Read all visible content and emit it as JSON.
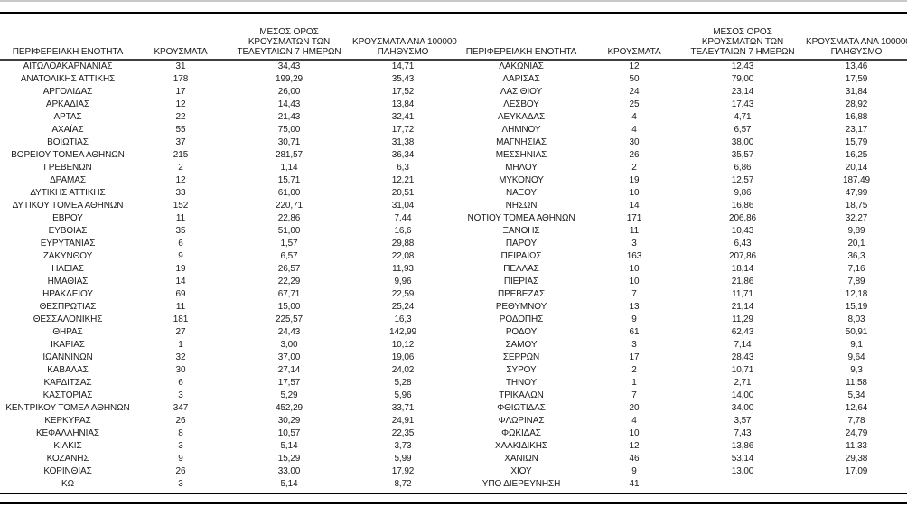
{
  "colors": {
    "top_divider": "#c9c9c9",
    "top_rule": "#000000",
    "header_rule": "#3f3f3f",
    "bottom_rules": "#000000",
    "text": "#1a1a1a"
  },
  "columns": [
    {
      "id": "region",
      "label": "ΠΕΡΙΦΕΡΕΙΑΚΗ ΕΝΟΤΗΤΑ",
      "lines": [
        "ΠΕΡΙΦΕΡΕΙΑΚΗ ΕΝΟΤΗΤΑ"
      ]
    },
    {
      "id": "cases",
      "label": "ΚΡΟΥΣΜΑΤΑ",
      "lines": [
        "ΚΡΟΥΣΜΑΤΑ"
      ]
    },
    {
      "id": "avg7",
      "label": "ΜΕΣΟΣ ΟΡΟΣ ΚΡΟΥΣΜΑΤΩΝ ΤΩΝ ΤΕΛΕΥΤΑΙΩΝ 7 ΗΜΕΡΩΝ",
      "lines": [
        "ΜΕΣΟΣ ΟΡΟΣ",
        "ΚΡΟΥΣΜΑΤΩΝ ΤΩΝ",
        "ΤΕΛΕΥΤΑΙΩΝ 7 ΗΜΕΡΩΝ"
      ]
    },
    {
      "id": "per100k",
      "label": "ΚΡΟΥΣΜΑΤΑ ΑΝΑ 100000 ΠΛΗΘΥΣΜΟ",
      "lines": [
        "ΚΡΟΥΣΜΑΤΑ ΑΝΑ 100000",
        "ΠΛΗΘΥΣΜΟ"
      ]
    }
  ],
  "tables": [
    {
      "id": "left",
      "rows": [
        [
          "ΑΙΤΩΛΟΑΚΑΡΝΑΝΙΑΣ",
          "31",
          "34,43",
          "14,71"
        ],
        [
          "ΑΝΑΤΟΛΙΚΗΣ ΑΤΤΙΚΗΣ",
          "178",
          "199,29",
          "35,43"
        ],
        [
          "ΑΡΓΟΛΙΔΑΣ",
          "17",
          "26,00",
          "17,52"
        ],
        [
          "ΑΡΚΑΔΙΑΣ",
          "12",
          "14,43",
          "13,84"
        ],
        [
          "ΑΡΤΑΣ",
          "22",
          "21,43",
          "32,41"
        ],
        [
          "ΑΧΑΪΑΣ",
          "55",
          "75,00",
          "17,72"
        ],
        [
          "ΒΟΙΩΤΙΑΣ",
          "37",
          "30,71",
          "31,38"
        ],
        [
          "ΒΟΡΕΙΟΥ ΤΟΜΕΑ ΑΘΗΝΩΝ",
          "215",
          "281,57",
          "36,34"
        ],
        [
          "ΓΡΕΒΕΝΩΝ",
          "2",
          "1,14",
          "6,3"
        ],
        [
          "ΔΡΑΜΑΣ",
          "12",
          "15,71",
          "12,21"
        ],
        [
          "ΔΥΤΙΚΗΣ ΑΤΤΙΚΗΣ",
          "33",
          "61,00",
          "20,51"
        ],
        [
          "ΔΥΤΙΚΟΥ ΤΟΜΕΑ ΑΘΗΝΩΝ",
          "152",
          "220,71",
          "31,04"
        ],
        [
          "ΕΒΡΟΥ",
          "11",
          "22,86",
          "7,44"
        ],
        [
          "ΕΥΒΟΙΑΣ",
          "35",
          "51,00",
          "16,6"
        ],
        [
          "ΕΥΡΥΤΑΝΙΑΣ",
          "6",
          "1,57",
          "29,88"
        ],
        [
          "ΖΑΚΥΝΘΟΥ",
          "9",
          "6,57",
          "22,08"
        ],
        [
          "ΗΛΕΙΑΣ",
          "19",
          "26,57",
          "11,93"
        ],
        [
          "ΗΜΑΘΙΑΣ",
          "14",
          "22,29",
          "9,96"
        ],
        [
          "ΗΡΑΚΛΕΙΟΥ",
          "69",
          "67,71",
          "22,59"
        ],
        [
          "ΘΕΣΠΡΩΤΙΑΣ",
          "11",
          "15,00",
          "25,24"
        ],
        [
          "ΘΕΣΣΑΛΟΝΙΚΗΣ",
          "181",
          "225,57",
          "16,3"
        ],
        [
          "ΘΗΡΑΣ",
          "27",
          "24,43",
          "142,99"
        ],
        [
          "ΙΚΑΡΙΑΣ",
          "1",
          "3,00",
          "10,12"
        ],
        [
          "ΙΩΑΝΝΙΝΩΝ",
          "32",
          "37,00",
          "19,06"
        ],
        [
          "ΚΑΒΑΛΑΣ",
          "30",
          "27,14",
          "24,02"
        ],
        [
          "ΚΑΡΔΙΤΣΑΣ",
          "6",
          "17,57",
          "5,28"
        ],
        [
          "ΚΑΣΤΟΡΙΑΣ",
          "3",
          "5,29",
          "5,96"
        ],
        [
          "ΚΕΝΤΡΙΚΟΥ ΤΟΜΕΑ ΑΘΗΝΩΝ",
          "347",
          "452,29",
          "33,71"
        ],
        [
          "ΚΕΡΚΥΡΑΣ",
          "26",
          "30,29",
          "24,91"
        ],
        [
          "ΚΕΦΑΛΛΗΝΙΑΣ",
          "8",
          "10,57",
          "22,35"
        ],
        [
          "ΚΙΛΚΙΣ",
          "3",
          "5,14",
          "3,73"
        ],
        [
          "ΚΟΖΑΝΗΣ",
          "9",
          "15,29",
          "5,99"
        ],
        [
          "ΚΟΡΙΝΘΙΑΣ",
          "26",
          "33,00",
          "17,92"
        ],
        [
          "ΚΩ",
          "3",
          "5,14",
          "8,72"
        ]
      ]
    },
    {
      "id": "right",
      "rows": [
        [
          "ΛΑΚΩΝΙΑΣ",
          "12",
          "12,43",
          "13,46"
        ],
        [
          "ΛΑΡΙΣΑΣ",
          "50",
          "79,00",
          "17,59"
        ],
        [
          "ΛΑΣΙΘΙΟΥ",
          "24",
          "23,14",
          "31,84"
        ],
        [
          "ΛΕΣΒΟΥ",
          "25",
          "17,43",
          "28,92"
        ],
        [
          "ΛΕΥΚΑΔΑΣ",
          "4",
          "4,71",
          "16,88"
        ],
        [
          "ΛΗΜΝΟΥ",
          "4",
          "6,57",
          "23,17"
        ],
        [
          "ΜΑΓΝΗΣΙΑΣ",
          "30",
          "38,00",
          "15,79"
        ],
        [
          "ΜΕΣΣΗΝΙΑΣ",
          "26",
          "35,57",
          "16,25"
        ],
        [
          "ΜΗΛΟΥ",
          "2",
          "6,86",
          "20,14"
        ],
        [
          "ΜΥΚΟΝΟΥ",
          "19",
          "12,57",
          "187,49"
        ],
        [
          "ΝΑΞΟΥ",
          "10",
          "9,86",
          "47,99"
        ],
        [
          "ΝΗΣΩΝ",
          "14",
          "16,86",
          "18,75"
        ],
        [
          "ΝΟΤΙΟΥ ΤΟΜΕΑ ΑΘΗΝΩΝ",
          "171",
          "206,86",
          "32,27"
        ],
        [
          "ΞΑΝΘΗΣ",
          "11",
          "10,43",
          "9,89"
        ],
        [
          "ΠΑΡΟΥ",
          "3",
          "6,43",
          "20,1"
        ],
        [
          "ΠΕΙΡΑΙΩΣ",
          "163",
          "207,86",
          "36,3"
        ],
        [
          "ΠΕΛΛΑΣ",
          "10",
          "18,14",
          "7,16"
        ],
        [
          "ΠΙΕΡΙΑΣ",
          "10",
          "21,86",
          "7,89"
        ],
        [
          "ΠΡΕΒΕΖΑΣ",
          "7",
          "11,71",
          "12,18"
        ],
        [
          "ΡΕΘΥΜΝΟΥ",
          "13",
          "21,14",
          "15,19"
        ],
        [
          "ΡΟΔΟΠΗΣ",
          "9",
          "11,29",
          "8,03"
        ],
        [
          "ΡΟΔΟΥ",
          "61",
          "62,43",
          "50,91"
        ],
        [
          "ΣΑΜΟΥ",
          "3",
          "7,14",
          "9,1"
        ],
        [
          "ΣΕΡΡΩΝ",
          "17",
          "28,43",
          "9,64"
        ],
        [
          "ΣΥΡΟΥ",
          "2",
          "10,71",
          "9,3"
        ],
        [
          "ΤΗΝΟΥ",
          "1",
          "2,71",
          "11,58"
        ],
        [
          "ΤΡΙΚΑΛΩΝ",
          "7",
          "14,00",
          "5,34"
        ],
        [
          "ΦΘΙΩΤΙΔΑΣ",
          "20",
          "34,00",
          "12,64"
        ],
        [
          "ΦΛΩΡΙΝΑΣ",
          "4",
          "3,57",
          "7,78"
        ],
        [
          "ΦΩΚΙΔΑΣ",
          "10",
          "7,43",
          "24,79"
        ],
        [
          "ΧΑΛΚΙΔΙΚΗΣ",
          "12",
          "13,86",
          "11,33"
        ],
        [
          "ΧΑΝΙΩΝ",
          "46",
          "53,14",
          "29,38"
        ],
        [
          "ΧΙΟΥ",
          "9",
          "13,00",
          "17,09"
        ],
        [
          "ΥΠΟ ΔΙΕΡΕΥΝΗΣΗ",
          "41",
          "",
          ""
        ]
      ]
    }
  ]
}
